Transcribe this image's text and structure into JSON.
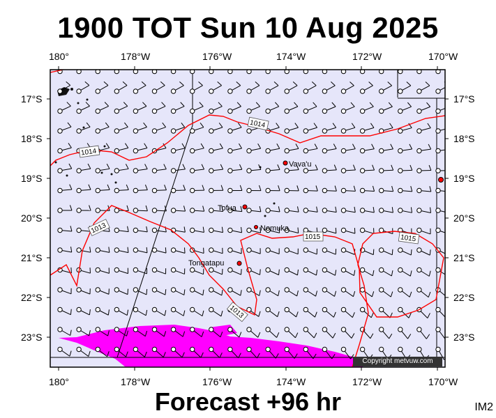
{
  "header": {
    "title": "1900 TOT Sun 10 Aug 2025"
  },
  "footer": {
    "forecast": "Forecast +96 hr",
    "image_id": "IM2"
  },
  "axes": {
    "lon_labels": [
      "180°",
      "178°W",
      "176°W",
      "174°W",
      "172°W",
      "170°W"
    ],
    "lat_labels": [
      "17°S",
      "18°S",
      "19°S",
      "20°S",
      "21°S",
      "22°S",
      "23°S"
    ]
  },
  "isobar_labels": [
    "1014",
    "1014",
    "1013",
    "1015",
    "1015",
    "1013"
  ],
  "places": [
    "Vava'u",
    "Tofua",
    "Nomuka",
    "Tongatapu"
  ],
  "credit": "Copyright metvuw.com",
  "colors": {
    "ocean": "#e6e6fa",
    "isobar": "#ff0000",
    "precip": "#ff00ff",
    "land": "#000000"
  }
}
